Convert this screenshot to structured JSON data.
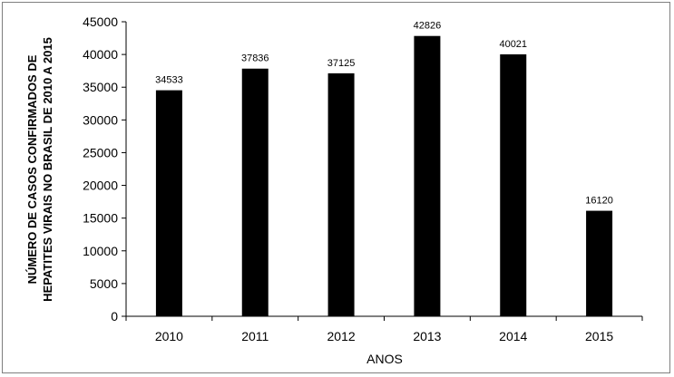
{
  "chart_data": {
    "type": "bar",
    "title": "",
    "xlabel": "ANOS",
    "ylabel_lines": [
      "NÚMERO DE CASOS CONFIRMADOS DE",
      "HEPATITES VIRAIS NO BRASIL DE 2010 A 2015"
    ],
    "categories": [
      "2010",
      "2011",
      "2012",
      "2013",
      "2014",
      "2015"
    ],
    "values": [
      34533,
      37836,
      37125,
      42826,
      40021,
      16120
    ],
    "data_labels": [
      "34533",
      "37836",
      "37125",
      "42826",
      "40021",
      "16120"
    ],
    "ylim": [
      0,
      45000
    ],
    "yticks": [
      0,
      5000,
      10000,
      15000,
      20000,
      25000,
      30000,
      35000,
      40000,
      45000
    ],
    "ytick_labels": [
      "0",
      "5000",
      "10000",
      "15000",
      "20000",
      "25000",
      "30000",
      "35000",
      "40000",
      "45000"
    ],
    "bar_color": "#000000",
    "grid": false,
    "legend": "none"
  }
}
